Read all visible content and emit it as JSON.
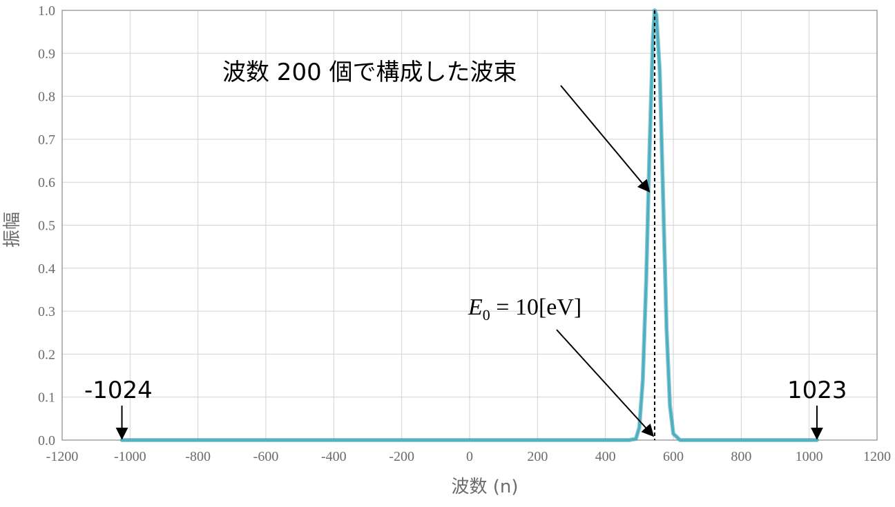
{
  "colors": {
    "curve": "#4bb0c3",
    "curve_dark": "#3e9aa4",
    "grid": "#d2d2d2",
    "frame": "#a0a0a0",
    "tick_text": "#6b6b6b",
    "annotation": "#000000"
  },
  "chart_data": {
    "type": "line",
    "xlabel": "波数 (n)",
    "ylabel": "振幅",
    "xlim": [
      -1200,
      1200
    ],
    "ylim": [
      0.0,
      1.0
    ],
    "x_ticks": [
      -1200,
      -1000,
      -800,
      -600,
      -400,
      -200,
      0,
      200,
      400,
      600,
      800,
      1000,
      1200
    ],
    "y_ticks": [
      0.0,
      0.1,
      0.2,
      0.3,
      0.4,
      0.5,
      0.6,
      0.7,
      0.8,
      0.9,
      1.0
    ],
    "x_tick_labels": [
      "-1200",
      "-1000",
      "-800",
      "-600",
      "-400",
      "-200",
      "0",
      "200",
      "400",
      "600",
      "800",
      "1000",
      "1200"
    ],
    "y_tick_labels": [
      "0.0",
      "0.1",
      "0.2",
      "0.3",
      "0.4",
      "0.5",
      "0.6",
      "0.7",
      "0.8",
      "0.9",
      "1.0"
    ],
    "grid": true,
    "series": [
      {
        "x": [
          -1024,
          -600,
          -200,
          200,
          400,
          470,
          490,
          500,
          510,
          520,
          530,
          540,
          545,
          550,
          560,
          570,
          580,
          590,
          600,
          620,
          800,
          1023
        ],
        "y": [
          0.0,
          0.0,
          0.0,
          0.0,
          0.0,
          0.0,
          0.003,
          0.03,
          0.14,
          0.37,
          0.68,
          0.94,
          1.0,
          0.99,
          0.86,
          0.56,
          0.26,
          0.08,
          0.015,
          0.0,
          0.0,
          0.0
        ]
      }
    ],
    "peak_line": {
      "x": 545,
      "style": "dashed"
    },
    "annotations": {
      "wave_packet": "波数 200 個で構成した波束",
      "energy_E": "E",
      "energy_sub": "0",
      "energy_rest": " = 10[eV]",
      "left_end": "-1024",
      "right_end": "1023"
    },
    "arrow_targets": {
      "left_end_x": -1024,
      "right_end_x": 1023,
      "energy_x": 545,
      "wave_packet_point": [
        525,
        0.58
      ]
    }
  }
}
